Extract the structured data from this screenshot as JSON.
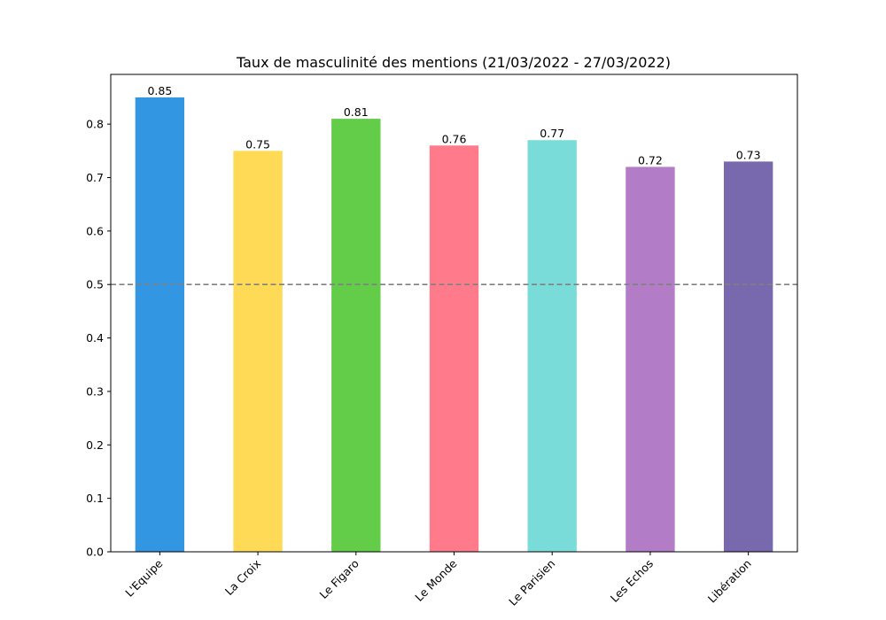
{
  "chart_data": {
    "type": "bar",
    "title": "Taux de masculinité des mentions (21/03/2022 - 27/03/2022)",
    "xlabel": "",
    "ylabel": "",
    "categories": [
      "L'Equipe",
      "La Croix",
      "Le Figaro",
      "Le Monde",
      "Le Parisien",
      "Les Echos",
      "Libération"
    ],
    "values": [
      0.85,
      0.75,
      0.81,
      0.76,
      0.77,
      0.72,
      0.73
    ],
    "data_labels": [
      "0.85",
      "0.75",
      "0.81",
      "0.76",
      "0.77",
      "0.72",
      "0.73"
    ],
    "colors": [
      "#3296e3",
      "#ffda57",
      "#63cc48",
      "#ff7b8c",
      "#7adcd8",
      "#b37cc7",
      "#7869ae"
    ],
    "ylim": [
      0,
      0.893
    ],
    "yticks": [
      0.0,
      0.1,
      0.2,
      0.3,
      0.4,
      0.5,
      0.6,
      0.7,
      0.8
    ],
    "ytick_labels": [
      "0.0",
      "0.1",
      "0.2",
      "0.3",
      "0.4",
      "0.5",
      "0.6",
      "0.7",
      "0.8"
    ],
    "reference_line": {
      "y": 0.5,
      "style": "dashed",
      "color": "#808080"
    },
    "grid": false,
    "legend": "none",
    "xtick_rotation": 45
  }
}
